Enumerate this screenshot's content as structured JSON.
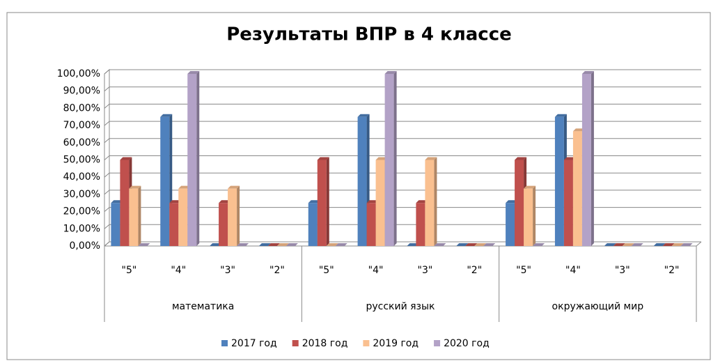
{
  "chart_data": {
    "type": "bar3d",
    "title": "Результаты ВПР в 4 классе",
    "categories": [
      "\"5\"",
      "\"4\"",
      "\"3\"",
      "\"2\"",
      "\"5\"",
      "\"4\"",
      "\"3\"",
      "\"2\"",
      "\"5\"",
      "\"4\"",
      "\"3\"",
      "\"2\""
    ],
    "groups": [
      "математика",
      "русский язык",
      "окружающий мир"
    ],
    "series": [
      {
        "name": "2017 год",
        "color": "#4f81bd",
        "values": [
          25,
          75,
          0,
          0,
          25,
          75,
          0,
          0,
          25,
          75,
          0,
          0
        ]
      },
      {
        "name": "2018 год",
        "color": "#c0504d",
        "values": [
          50,
          25,
          25,
          0,
          50,
          25,
          25,
          0,
          50,
          50,
          0,
          0
        ]
      },
      {
        "name": "2019 год",
        "color": "#fac090",
        "values": [
          33.33,
          33.33,
          33.33,
          0,
          0,
          50,
          50,
          0,
          33.33,
          66.67,
          0,
          0
        ]
      },
      {
        "name": "2020 год",
        "color": "#b3a2c7",
        "values": [
          0,
          100,
          0,
          0,
          0,
          100,
          0,
          0,
          0,
          100,
          0,
          0
        ]
      }
    ],
    "ylim": [
      0,
      100
    ],
    "yticks": [
      {
        "value": 0,
        "label": "0,00%"
      },
      {
        "value": 10,
        "label": "10,00%"
      },
      {
        "value": 20,
        "label": "20,00%"
      },
      {
        "value": 30,
        "label": "30,00%"
      },
      {
        "value": 40,
        "label": "40,00%"
      },
      {
        "value": 50,
        "label": "50,00%"
      },
      {
        "value": 60,
        "label": "60,00%"
      },
      {
        "value": 70,
        "label": "70,00%"
      },
      {
        "value": 80,
        "label": "80,00%"
      },
      {
        "value": 90,
        "label": "90,00%"
      },
      {
        "value": 100,
        "label": "100,00%"
      }
    ],
    "grid": true,
    "legend": "bottom"
  }
}
